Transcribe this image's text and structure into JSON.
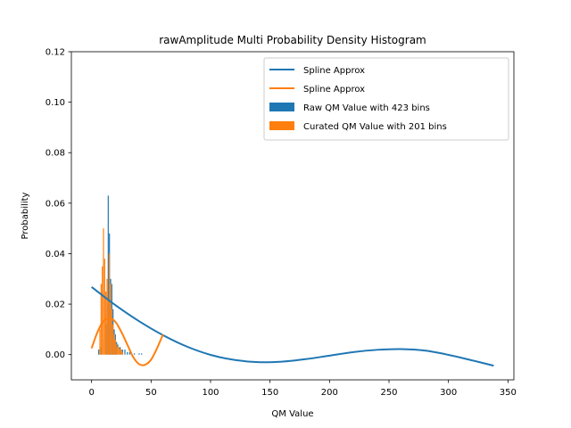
{
  "chart_data": {
    "type": "bar",
    "title": "rawAmplitude Multi Probability Density Histogram",
    "xlabel": "QM Value",
    "ylabel": "Probability",
    "xlim": [
      -17,
      355
    ],
    "ylim": [
      -0.01,
      0.12
    ],
    "xticks": [
      0,
      50,
      100,
      150,
      200,
      250,
      300,
      350
    ],
    "yticks": [
      0.0,
      0.02,
      0.04,
      0.06,
      0.08,
      0.1,
      0.12
    ],
    "grid": false,
    "legend_position": "top-right",
    "series": [
      {
        "name": "Spline Approx",
        "kind": "line",
        "color": "#1f77b4",
        "x": [
          0,
          20,
          40,
          60,
          80,
          100,
          120,
          140,
          160,
          180,
          200,
          220,
          240,
          260,
          280,
          300,
          320,
          338
        ],
        "values": [
          0.0268,
          0.0196,
          0.0132,
          0.0077,
          0.0032,
          -0.0001,
          -0.0021,
          -0.003,
          -0.0028,
          -0.0018,
          -0.0004,
          0.001,
          0.0019,
          0.0022,
          0.0016,
          -0.0001,
          -0.0023,
          -0.0044
        ]
      },
      {
        "name": "Spline Approx",
        "kind": "line",
        "color": "#ff7f0e",
        "x": [
          0,
          5,
          10,
          15,
          20,
          25,
          30,
          35,
          40,
          45,
          50,
          55,
          60
        ],
        "values": [
          0.0025,
          0.009,
          0.0133,
          0.0145,
          0.013,
          0.009,
          0.004,
          -0.001,
          -0.0038,
          -0.004,
          -0.002,
          0.0025,
          0.008
        ]
      },
      {
        "name": "Raw QM Value with 423 bins",
        "kind": "bar",
        "color": "#1f77b4",
        "x": [
          6,
          8,
          10,
          12,
          13,
          14,
          15,
          16,
          17,
          18,
          19,
          20,
          21,
          22,
          24,
          26,
          28,
          30,
          32,
          36,
          40,
          42
        ],
        "values": [
          0.002,
          0.003,
          0.006,
          0.012,
          0.02,
          0.063,
          0.048,
          0.03,
          0.028,
          0.018,
          0.01,
          0.008,
          0.005,
          0.004,
          0.003,
          0.002,
          0.002,
          0.001,
          0.001,
          0.0005,
          0.0005,
          0.0005
        ]
      },
      {
        "name": "Curated QM Value with 201 bins",
        "kind": "bar",
        "color": "#ff7f0e",
        "x": [
          7,
          8,
          9,
          10,
          11,
          12,
          13,
          14,
          15,
          16,
          17,
          18,
          19,
          20,
          21,
          22,
          23,
          24,
          25,
          26
        ],
        "values": [
          0.01,
          0.028,
          0.035,
          0.05,
          0.038,
          0.025,
          0.03,
          0.022,
          0.04,
          0.028,
          0.018,
          0.012,
          0.008,
          0.006,
          0.004,
          0.003,
          0.003,
          0.002,
          0.002,
          0.001
        ]
      }
    ],
    "legend": [
      {
        "label": "Spline Approx",
        "marker": "line",
        "color": "#1f77b4"
      },
      {
        "label": "Spline Approx",
        "marker": "line",
        "color": "#ff7f0e"
      },
      {
        "label": "Raw QM Value with 423 bins",
        "marker": "patch",
        "color": "#1f77b4"
      },
      {
        "label": "Curated QM Value with 201 bins",
        "marker": "patch",
        "color": "#ff7f0e"
      }
    ]
  }
}
